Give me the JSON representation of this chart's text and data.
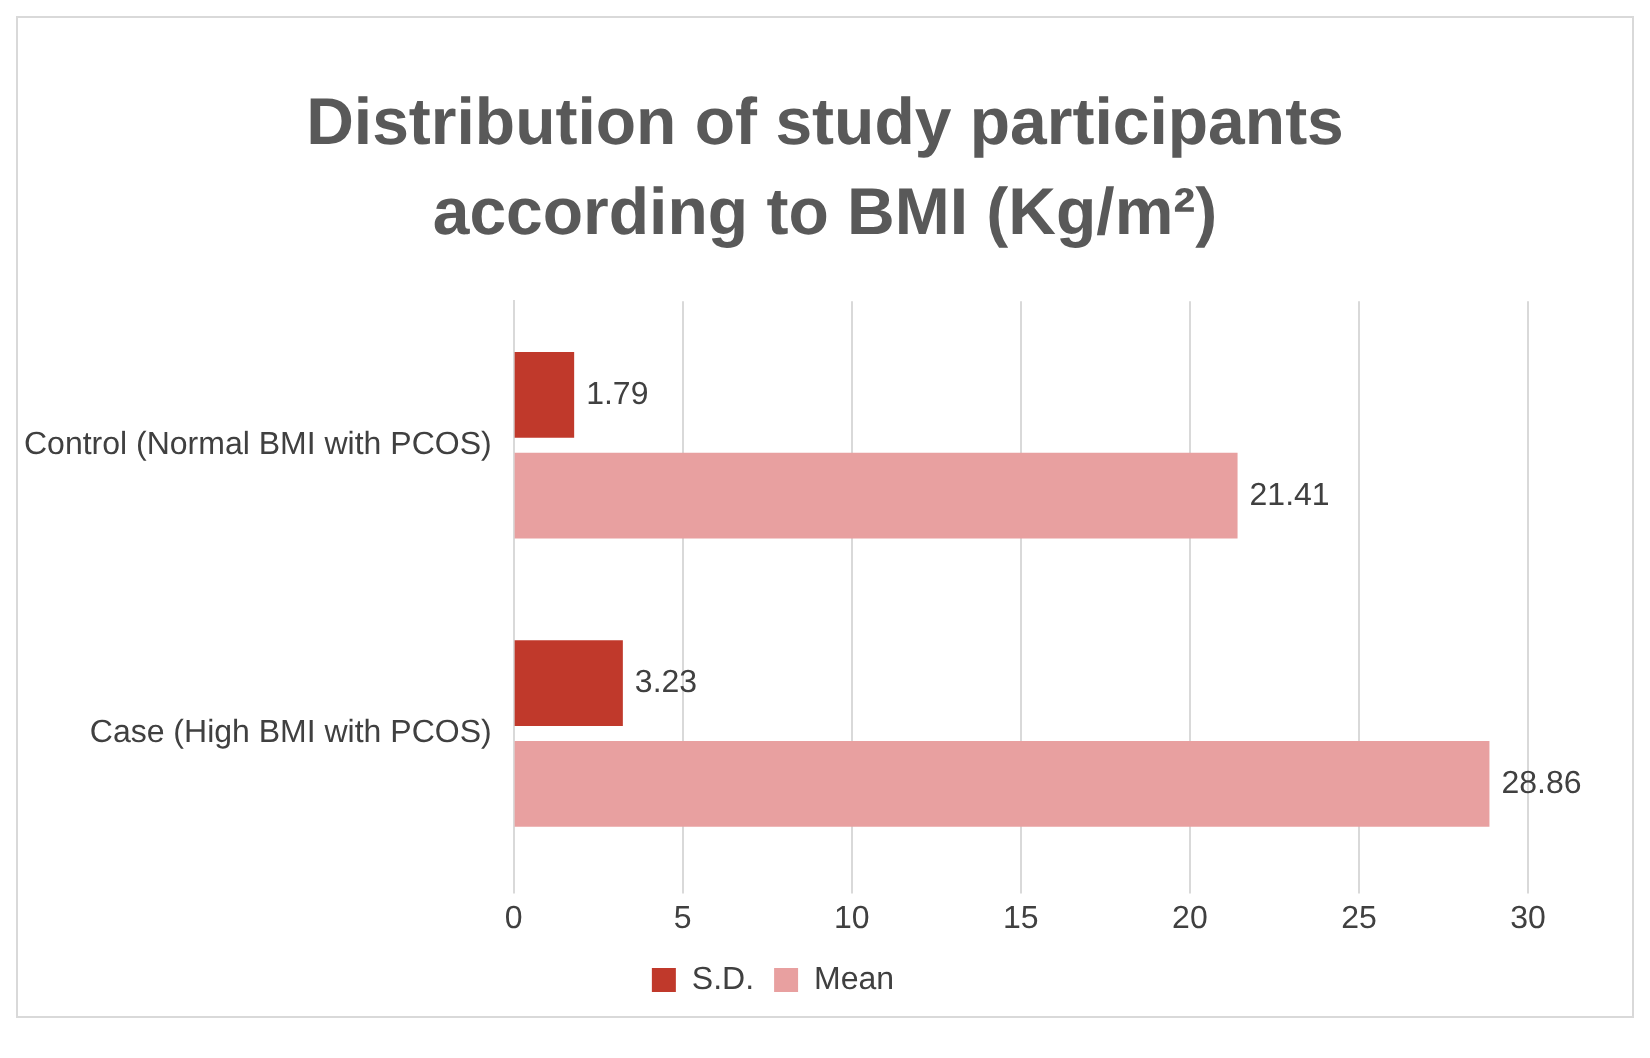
{
  "chart_data": {
    "type": "bar",
    "orientation": "horizontal",
    "title": "Distribution  of study participants according to BMI (Kg/m²)",
    "categories": [
      "Control (Normal BMI with PCOS)",
      "Case (High BMI with PCOS)"
    ],
    "series": [
      {
        "name": "S.D.",
        "color": "#c0392b",
        "values": [
          1.79,
          3.23
        ]
      },
      {
        "name": "Mean",
        "color": "#e8a0a0",
        "values": [
          21.41,
          28.86
        ]
      }
    ],
    "xlim": [
      0,
      30
    ],
    "xticks": [
      0,
      5,
      10,
      15,
      20,
      25,
      30
    ],
    "grid": "x",
    "legend": "bottom",
    "data_labels": true
  }
}
